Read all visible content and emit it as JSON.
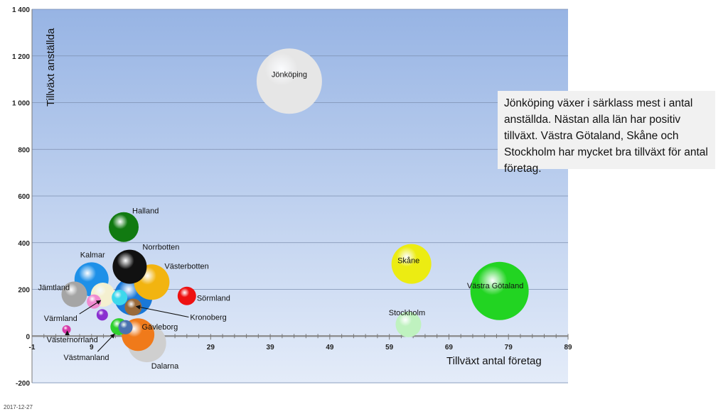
{
  "annotation": {
    "text": "Jönköping växer i särklass mest i antal anställda. Nästan alla län har positiv tillväxt. Västra Götaland, Skåne och Stockholm har mycket bra tillväxt för antal företag."
  },
  "footer": {
    "date": "2017-12-27"
  },
  "chart_data": {
    "type": "bubble",
    "xlabel": "Tillväxt antal företag",
    "ylabel": "Tillväxt anställda",
    "xlim": [
      -1,
      89
    ],
    "ylim": [
      -200,
      1400
    ],
    "x_ticks": [
      -1,
      9,
      19,
      29,
      39,
      49,
      59,
      69,
      79,
      89
    ],
    "y_ticks": [
      -200,
      0,
      200,
      400,
      600,
      800,
      1000,
      1200,
      1400
    ],
    "y_tick_labels": [
      "-200",
      "0",
      "200",
      "400",
      "600",
      "800",
      "1 000",
      "1 200",
      "1 400"
    ],
    "grid": true,
    "background": "gradient blue (top) to light blue (bottom)",
    "points": [
      {
        "label": "Jönköping",
        "x": 42.2,
        "y": 1092,
        "size": 46,
        "color": "#e6e6e6"
      },
      {
        "label": "Västra Götaland",
        "x": 77.5,
        "y": 193,
        "size": 41,
        "color": "#22d422"
      },
      {
        "label": "Skåne",
        "x": 62.7,
        "y": 309,
        "size": 28,
        "color": "#ecec12"
      },
      {
        "label": "Stockholm",
        "x": 62.2,
        "y": 50,
        "size": 18,
        "color": "#bff2bf"
      },
      {
        "label": "Halland",
        "x": 14.4,
        "y": 467,
        "size": 21,
        "color": "#117a11"
      },
      {
        "label": "Kalmar",
        "x": 9.0,
        "y": 243,
        "size": 24,
        "color": "#1e90e8"
      },
      {
        "label": "Norrbotten",
        "x": 15.4,
        "y": 297,
        "size": 24,
        "color": "#111111"
      },
      {
        "label": "Västerbotten",
        "x": 19.1,
        "y": 231,
        "size": 25,
        "color": "#f2b410"
      },
      {
        "label": "Jämtland",
        "x": 6.1,
        "y": 179,
        "size": 18,
        "color": "#a5a5a5"
      },
      {
        "label": "Sörmland",
        "x": 25.0,
        "y": 172,
        "size": 13,
        "color": "#ee1111"
      },
      {
        "label": "Kronoberg",
        "x": 16.0,
        "y": 124,
        "size": 12,
        "color": "#9a6a3a"
      },
      {
        "label": "Värmland",
        "x": 10.9,
        "y": 177,
        "size": 17,
        "color": "#f4f0d0"
      },
      {
        "label": "Västernorrland",
        "x": 4.8,
        "y": 28,
        "size": 6,
        "color": "#d63aa8"
      },
      {
        "label": "Västmanland",
        "x": 13.6,
        "y": 40,
        "size": 12,
        "color": "#2ed02e"
      },
      {
        "label": "Gävleborg",
        "x": 14.7,
        "y": 38,
        "size": 10,
        "color": "#4a72b0"
      },
      {
        "label": "Dalarna",
        "x": 18.3,
        "y": -30,
        "size": 27,
        "color": "#cfcfcf"
      },
      {
        "label": "",
        "x": 16.8,
        "y": 6,
        "size": 23,
        "color": "#f07a1a"
      },
      {
        "label": "",
        "x": 16.0,
        "y": 170,
        "size": 27,
        "color": "#1978d8"
      },
      {
        "label": "",
        "x": 13.7,
        "y": 165,
        "size": 11,
        "color": "#3dd8ec"
      },
      {
        "label": "",
        "x": 10.8,
        "y": 91,
        "size": 8,
        "color": "#8a2fd0"
      },
      {
        "label": "",
        "x": 9.4,
        "y": 148,
        "size": 10,
        "color": "#f08ad0"
      }
    ]
  }
}
